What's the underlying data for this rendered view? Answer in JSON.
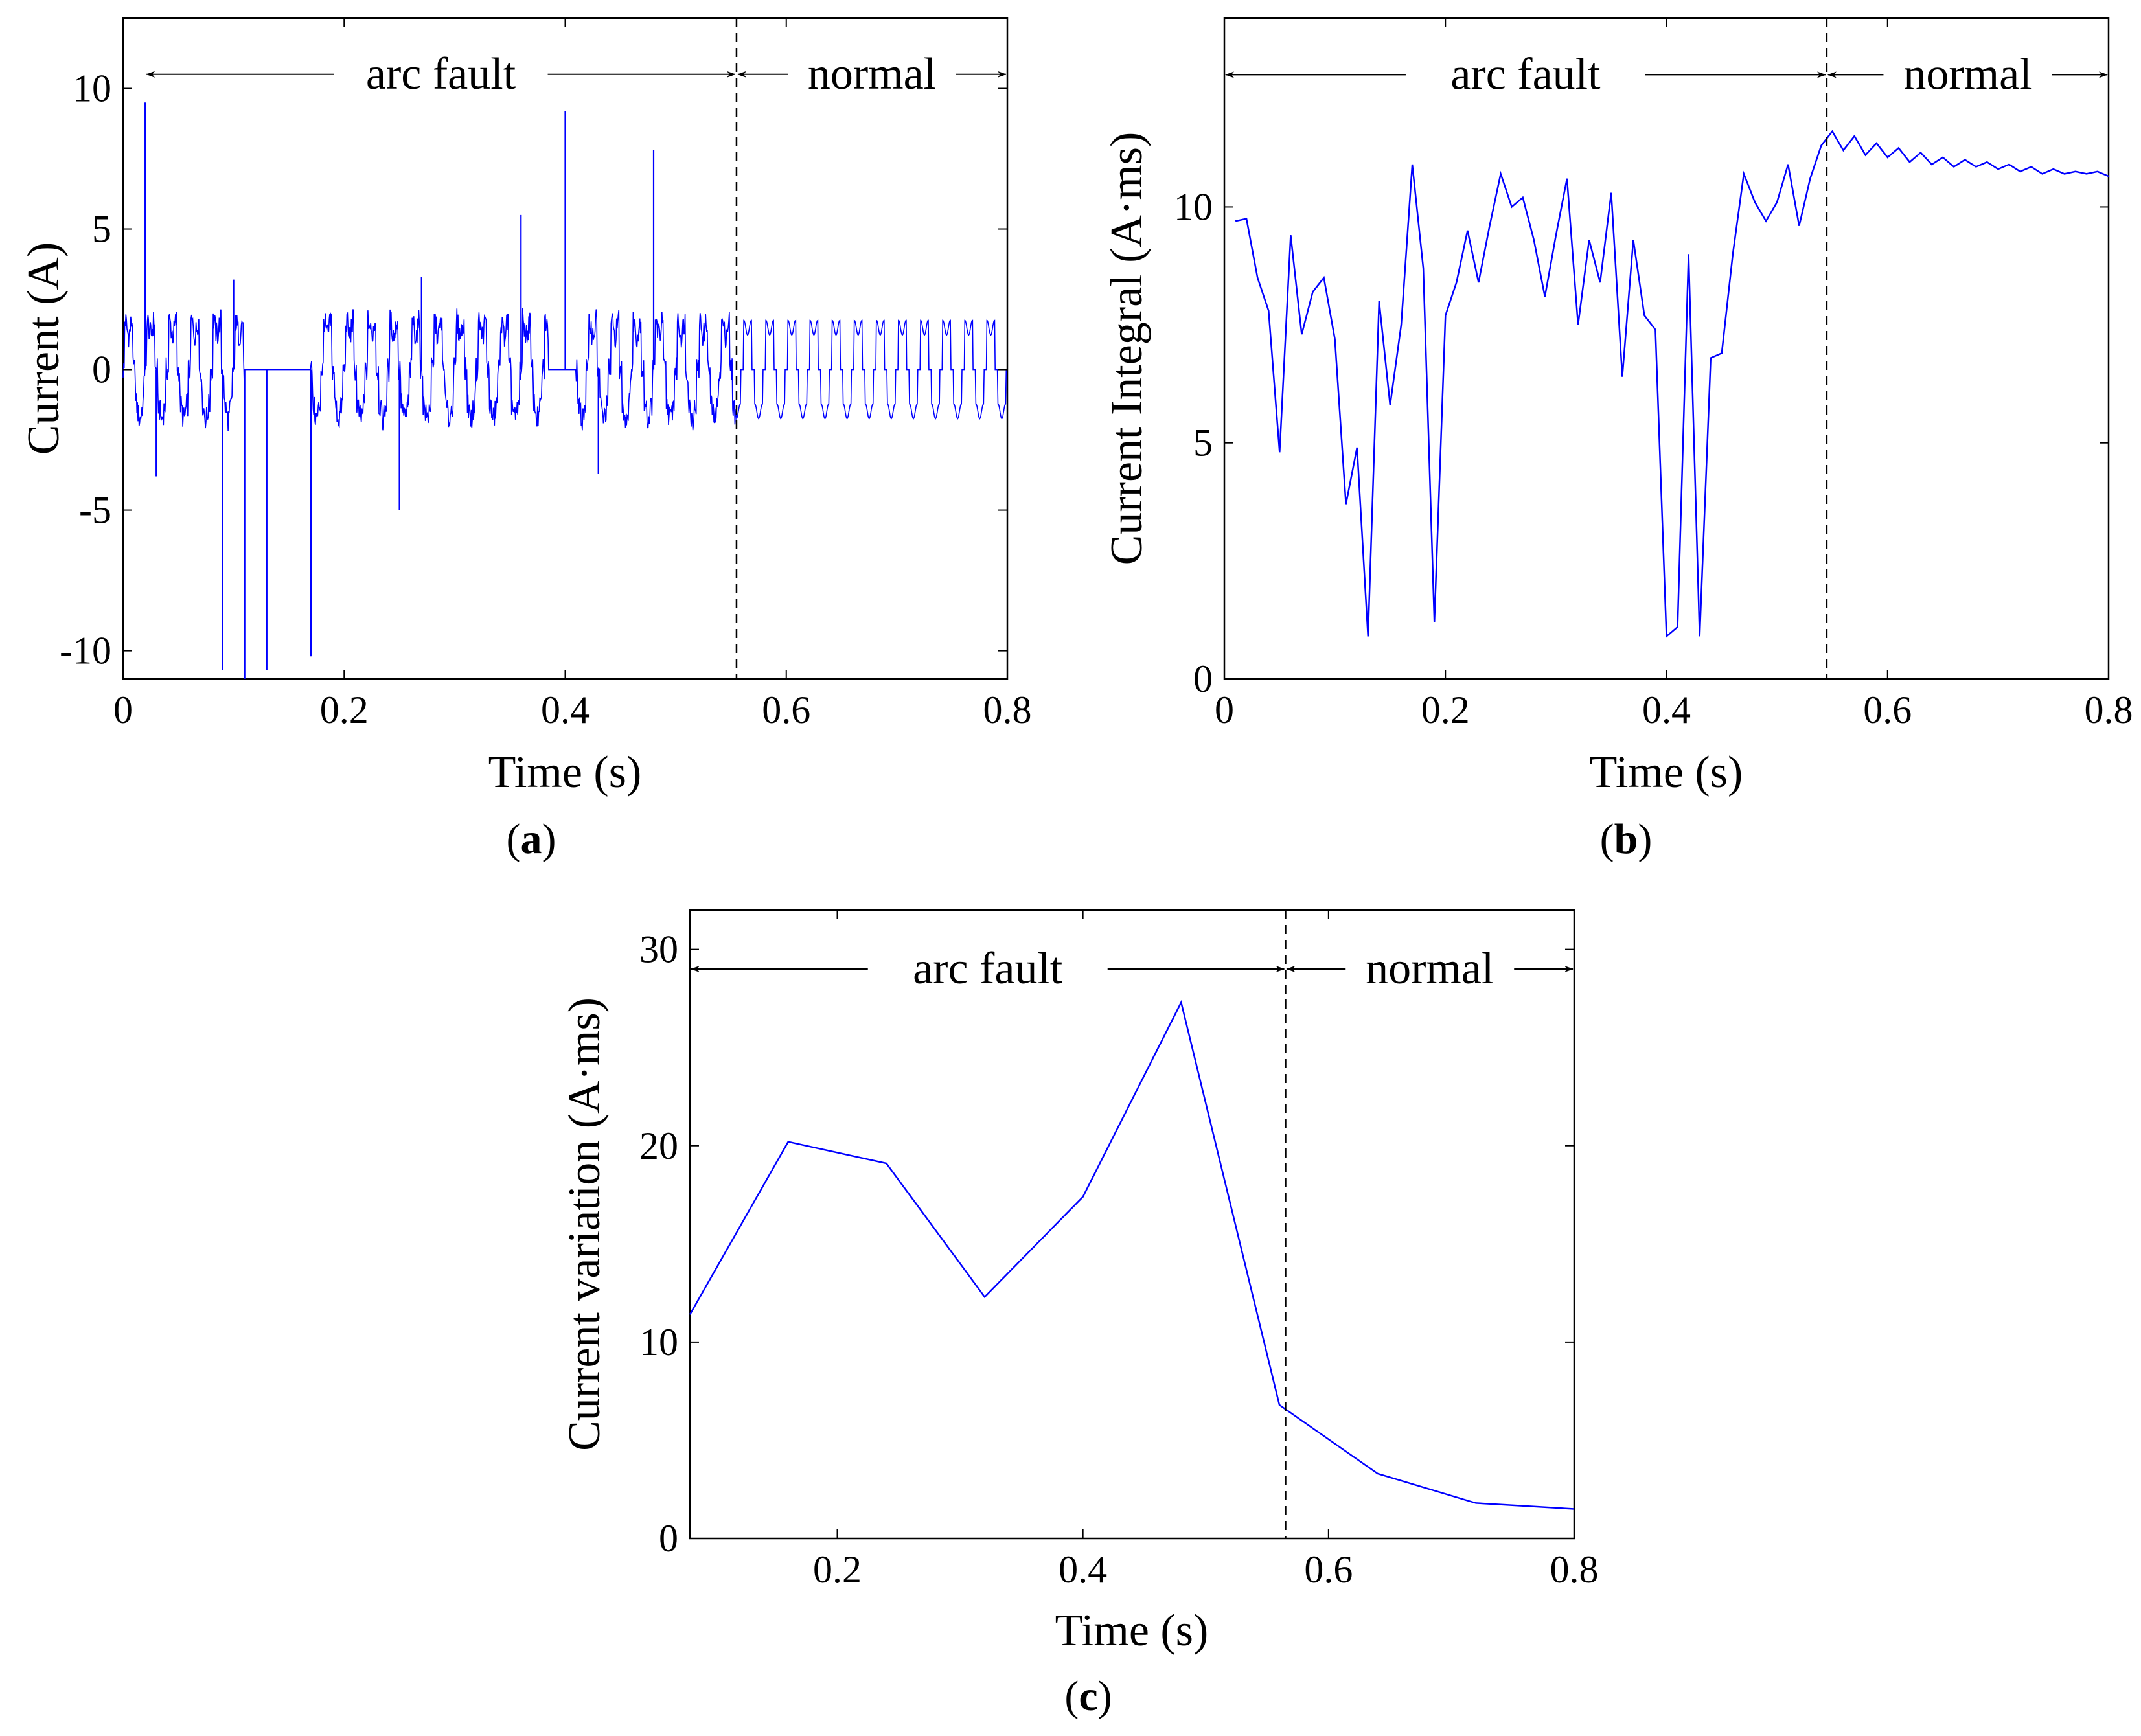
{
  "colors": {
    "series": "#0000ff",
    "axis": "#000000",
    "background": "#ffffff"
  },
  "chart_data": [
    {
      "id": "a",
      "type": "line",
      "panel_label": "a",
      "xlabel": "Time (s)",
      "ylabel": "Current (A)",
      "xlim": [
        0,
        0.8
      ],
      "ylim": [
        -11,
        12.5
      ],
      "xticks": [
        0,
        0.2,
        0.4,
        0.6,
        0.8
      ],
      "xtick_labels": [
        "0",
        "0.2",
        "0.4",
        "0.6",
        "0.8"
      ],
      "yticks": [
        -10,
        -5,
        0,
        5,
        10
      ],
      "ytick_labels": [
        "-10",
        "-5",
        "0",
        "5",
        "10"
      ],
      "divider_x": 0.555,
      "annotations": {
        "left_label": "arc fault",
        "right_label": "normal",
        "y": 10.5,
        "left_start": 0.02,
        "right_end": 0.8
      },
      "waveform": {
        "description": "approximate current waveform",
        "frequency_hz": 50,
        "amplitude": 1.75,
        "fault_end": 0.555,
        "flat_zero_intervals": [
          [
            0.11,
            0.14
          ],
          [
            0.14,
            0.17
          ],
          [
            0.385,
            0.41
          ]
        ],
        "spikes": [
          {
            "x": 0.02,
            "y": 9.5
          },
          {
            "x": 0.09,
            "y": -10.7
          },
          {
            "x": 0.11,
            "y": -11
          },
          {
            "x": 0.13,
            "y": -10.7
          },
          {
            "x": 0.17,
            "y": -10.2
          },
          {
            "x": 0.25,
            "y": -5
          },
          {
            "x": 0.36,
            "y": 5.5
          },
          {
            "x": 0.4,
            "y": 9.2
          },
          {
            "x": 0.48,
            "y": 7.8
          },
          {
            "x": 0.03,
            "y": -3.8
          },
          {
            "x": 0.43,
            "y": -3.7
          },
          {
            "x": 0.1,
            "y": 3.2
          },
          {
            "x": 0.27,
            "y": 3.3
          }
        ]
      }
    },
    {
      "id": "b",
      "type": "line",
      "panel_label": "b",
      "xlabel": "Time (s)",
      "ylabel": "Current Integral (A·ms)",
      "xlim": [
        0,
        0.8
      ],
      "ylim": [
        0,
        14
      ],
      "xticks": [
        0,
        0.2,
        0.4,
        0.6,
        0.8
      ],
      "xtick_labels": [
        "0",
        "0.2",
        "0.4",
        "0.6",
        "0.8"
      ],
      "yticks": [
        0,
        5,
        10
      ],
      "ytick_labels": [
        "0",
        "5",
        "10"
      ],
      "divider_x": 0.545,
      "annotations": {
        "left_label": "arc fault",
        "right_label": "normal",
        "y": 12.8,
        "left_start": 0.0,
        "right_end": 0.8
      },
      "x": [
        0.01,
        0.02,
        0.03,
        0.04,
        0.05,
        0.06,
        0.07,
        0.08,
        0.09,
        0.1,
        0.11,
        0.12,
        0.13,
        0.14,
        0.15,
        0.16,
        0.17,
        0.18,
        0.19,
        0.2,
        0.21,
        0.22,
        0.23,
        0.24,
        0.25,
        0.26,
        0.27,
        0.28,
        0.29,
        0.3,
        0.31,
        0.32,
        0.33,
        0.34,
        0.35,
        0.36,
        0.37,
        0.38,
        0.39,
        0.4,
        0.41,
        0.42,
        0.43,
        0.44,
        0.45,
        0.46,
        0.47,
        0.48,
        0.49,
        0.5,
        0.51,
        0.52,
        0.53,
        0.54,
        0.55,
        0.56,
        0.57,
        0.58,
        0.59,
        0.6,
        0.61,
        0.62,
        0.63,
        0.64,
        0.65,
        0.66,
        0.67,
        0.68,
        0.69,
        0.7,
        0.71,
        0.72,
        0.73,
        0.74,
        0.75,
        0.76,
        0.77,
        0.78,
        0.79,
        0.8
      ],
      "y": [
        9.7,
        9.75,
        8.5,
        7.8,
        4.8,
        9.4,
        7.3,
        8.2,
        8.5,
        7.2,
        3.7,
        4.9,
        0.9,
        8.0,
        5.8,
        7.5,
        10.9,
        8.7,
        1.2,
        7.7,
        8.4,
        9.5,
        8.4,
        9.6,
        10.7,
        10.0,
        10.2,
        9.3,
        8.1,
        9.4,
        10.6,
        7.5,
        9.3,
        8.4,
        10.3,
        6.4,
        9.3,
        7.7,
        7.4,
        0.9,
        1.1,
        9.0,
        0.9,
        6.8,
        6.9,
        9.0,
        10.7,
        10.1,
        9.7,
        10.1,
        10.9,
        9.6,
        10.6,
        11.3,
        11.6,
        11.2,
        11.5,
        11.1,
        11.35,
        11.05,
        11.25,
        10.95,
        11.15,
        10.9,
        11.05,
        10.85,
        11.0,
        10.85,
        10.95,
        10.8,
        10.9,
        10.75,
        10.85,
        10.7,
        10.8,
        10.7,
        10.75,
        10.7,
        10.75,
        10.65
      ]
    },
    {
      "id": "c",
      "type": "line",
      "panel_label": "c",
      "xlabel": "Time (s)",
      "ylabel": "Current variation (A·ms)",
      "xlim": [
        0.08,
        0.8
      ],
      "ylim": [
        0,
        32
      ],
      "xticks": [
        0.2,
        0.4,
        0.6,
        0.8
      ],
      "xtick_labels": [
        "0.2",
        "0.4",
        "0.6",
        "0.8"
      ],
      "yticks": [
        0,
        10,
        20,
        30
      ],
      "ytick_labels": [
        "0",
        "10",
        "20",
        "30"
      ],
      "divider_x": 0.565,
      "annotations": {
        "left_label": "arc fault",
        "right_label": "normal",
        "y": 29,
        "left_start": 0.08,
        "right_end": 0.8
      },
      "x": [
        0.08,
        0.16,
        0.24,
        0.32,
        0.4,
        0.48,
        0.56,
        0.64,
        0.72,
        0.8
      ],
      "y": [
        11.4,
        20.2,
        19.1,
        12.3,
        17.4,
        27.3,
        6.8,
        3.3,
        1.8,
        1.5
      ]
    }
  ]
}
